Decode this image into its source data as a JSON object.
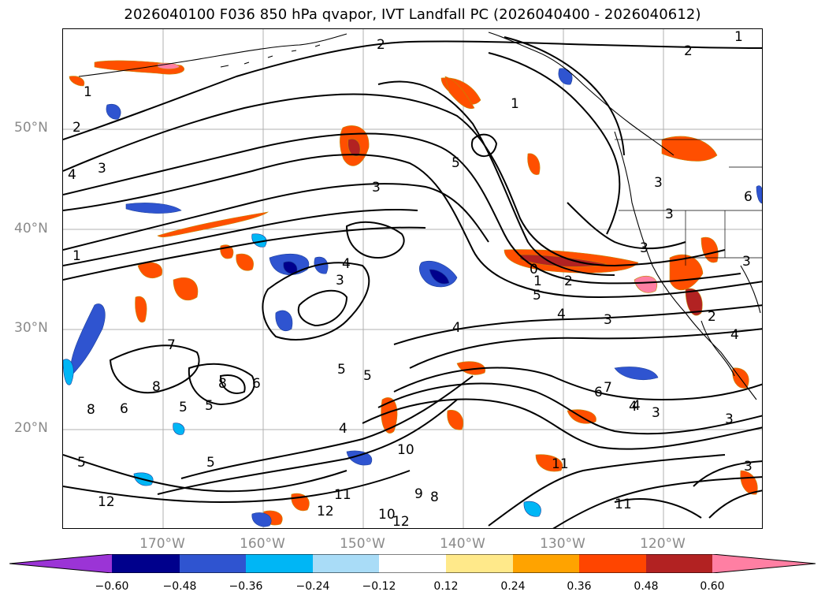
{
  "title": "2026040100 F036 850 hPa qvapor, IVT Landfall PC (2026040400 - 2026040612)",
  "map": {
    "lat_labels": [
      "50°N",
      "40°N",
      "30°N",
      "20°N"
    ],
    "lon_labels": [
      "170°W",
      "160°W",
      "150°W",
      "140°W",
      "130°W",
      "120°W"
    ],
    "contour_labels": [
      "2",
      "2",
      "1",
      "1",
      "1",
      "2",
      "3",
      "4",
      "3",
      "5",
      "1",
      "0",
      "2",
      "1",
      "5",
      "4",
      "3",
      "4",
      "5",
      "5",
      "4",
      "3",
      "4",
      "7",
      "6",
      "4",
      "3",
      "8",
      "8",
      "7",
      "6",
      "5",
      "5",
      "6",
      "8",
      "5",
      "4",
      "10",
      "11",
      "12",
      "9",
      "8",
      "10",
      "12",
      "12",
      "11",
      "11",
      "5",
      "3",
      "3",
      "3",
      "6",
      "3",
      "2",
      "4",
      "3",
      "3"
    ]
  },
  "colorbar": {
    "tick_labels": [
      "−0.60",
      "−0.48",
      "−0.36",
      "−0.24",
      "−0.12",
      "0.12",
      "0.24",
      "0.36",
      "0.48",
      "0.60"
    ],
    "colors": [
      "#9b34d6",
      "#00008c",
      "#2f54d0",
      "#00b6f5",
      "#a9dcf7",
      "#ffffff",
      "#ffe98a",
      "#ffa300",
      "#ff4500",
      "#b22222",
      "#ff7fa3"
    ]
  },
  "shading_colors": {
    "orange": "#ff4f00",
    "dark_red": "#b22222",
    "pink": "#ff7fa3",
    "yellow": "#ffe98a",
    "light_orange": "#ffa300",
    "dark_blue": "#00008c",
    "mid_blue": "#2f54d0",
    "cyan": "#00b6f5",
    "light_blue": "#a9dcf7"
  }
}
